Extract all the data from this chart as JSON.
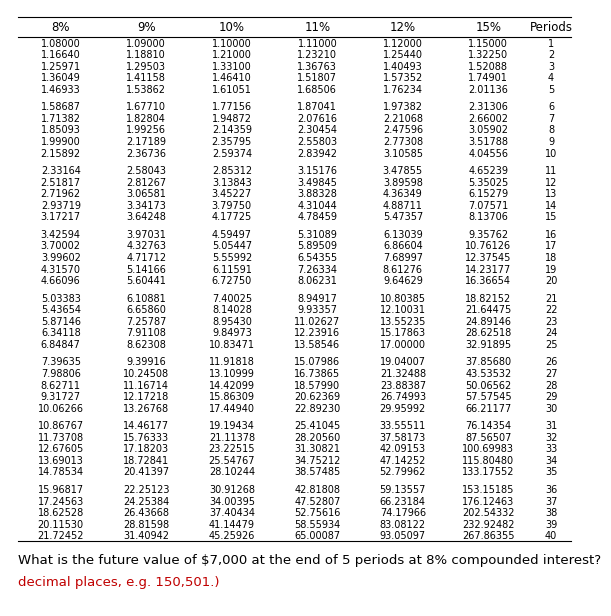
{
  "headers": [
    "8%",
    "9%",
    "10%",
    "11%",
    "12%",
    "15%",
    "Periods"
  ],
  "rows": [
    [
      1.08,
      1.09,
      1.1,
      1.11,
      1.12,
      1.15,
      1
    ],
    [
      1.1664,
      1.1881,
      1.21,
      1.2321,
      1.2544,
      1.3225,
      2
    ],
    [
      1.25971,
      1.29503,
      1.331,
      1.36763,
      1.40493,
      1.52088,
      3
    ],
    [
      1.36049,
      1.41158,
      1.4641,
      1.51807,
      1.57352,
      1.74901,
      4
    ],
    [
      1.46933,
      1.53862,
      1.61051,
      1.68506,
      1.76234,
      2.01136,
      5
    ],
    [
      null,
      null,
      null,
      null,
      null,
      null,
      null
    ],
    [
      1.58687,
      1.6771,
      1.77156,
      1.87041,
      1.97382,
      2.31306,
      6
    ],
    [
      1.71382,
      1.82804,
      1.94872,
      2.07616,
      2.21068,
      2.66002,
      7
    ],
    [
      1.85093,
      1.99256,
      2.14359,
      2.30454,
      2.47596,
      3.05902,
      8
    ],
    [
      1.999,
      2.17189,
      2.35795,
      2.55803,
      2.77308,
      3.51788,
      9
    ],
    [
      2.15892,
      2.36736,
      2.59374,
      2.83942,
      3.10585,
      4.04556,
      10
    ],
    [
      null,
      null,
      null,
      null,
      null,
      null,
      null
    ],
    [
      2.33164,
      2.58043,
      2.85312,
      3.15176,
      3.47855,
      4.65239,
      11
    ],
    [
      2.51817,
      2.81267,
      3.13843,
      3.49845,
      3.89598,
      5.35025,
      12
    ],
    [
      2.71962,
      3.06581,
      3.45227,
      3.88328,
      4.36349,
      6.15279,
      13
    ],
    [
      2.93719,
      3.34173,
      3.7975,
      4.31044,
      4.88711,
      7.07571,
      14
    ],
    [
      3.17217,
      3.64248,
      4.17725,
      4.78459,
      5.47357,
      8.13706,
      15
    ],
    [
      null,
      null,
      null,
      null,
      null,
      null,
      null
    ],
    [
      3.42594,
      3.97031,
      4.59497,
      5.31089,
      6.13039,
      9.35762,
      16
    ],
    [
      3.70002,
      4.32763,
      5.05447,
      5.89509,
      6.86604,
      10.76126,
      17
    ],
    [
      3.99602,
      4.71712,
      5.55992,
      6.54355,
      7.68997,
      12.37545,
      18
    ],
    [
      4.3157,
      5.14166,
      6.11591,
      7.26334,
      8.61276,
      14.23177,
      19
    ],
    [
      4.66096,
      5.60441,
      6.7275,
      8.06231,
      9.64629,
      16.36654,
      20
    ],
    [
      null,
      null,
      null,
      null,
      null,
      null,
      null
    ],
    [
      5.03383,
      6.10881,
      7.40025,
      8.94917,
      10.80385,
      18.82152,
      21
    ],
    [
      5.43654,
      6.6586,
      8.14028,
      9.93357,
      12.10031,
      21.64475,
      22
    ],
    [
      5.87146,
      7.25787,
      8.9543,
      11.02627,
      13.55235,
      24.89146,
      23
    ],
    [
      6.34118,
      7.91108,
      9.84973,
      12.23916,
      15.17863,
      28.62518,
      24
    ],
    [
      6.84847,
      8.62308,
      10.83471,
      13.58546,
      17.0,
      32.91895,
      25
    ],
    [
      null,
      null,
      null,
      null,
      null,
      null,
      null
    ],
    [
      7.39635,
      9.39916,
      11.91818,
      15.07986,
      19.04007,
      37.8568,
      26
    ],
    [
      7.98806,
      10.24508,
      13.10999,
      16.73865,
      21.32488,
      43.53532,
      27
    ],
    [
      8.62711,
      11.16714,
      14.42099,
      18.5799,
      23.88387,
      50.06562,
      28
    ],
    [
      9.31727,
      12.17218,
      15.86309,
      20.62369,
      26.74993,
      57.57545,
      29
    ],
    [
      10.06266,
      13.26768,
      17.4494,
      22.8923,
      29.95992,
      66.21177,
      30
    ],
    [
      null,
      null,
      null,
      null,
      null,
      null,
      null
    ],
    [
      10.86767,
      14.46177,
      19.19434,
      25.41045,
      33.55511,
      76.14354,
      31
    ],
    [
      11.73708,
      15.76333,
      21.11378,
      28.2056,
      37.58173,
      87.56507,
      32
    ],
    [
      12.67605,
      17.18203,
      23.22515,
      31.30821,
      42.09153,
      100.69983,
      33
    ],
    [
      13.69013,
      18.72841,
      25.54767,
      34.75212,
      47.14252,
      115.8048,
      34
    ],
    [
      14.78534,
      20.41397,
      28.10244,
      38.57485,
      52.79962,
      133.17552,
      35
    ],
    [
      null,
      null,
      null,
      null,
      null,
      null,
      null
    ],
    [
      15.96817,
      22.25123,
      30.91268,
      42.81808,
      59.13557,
      153.15185,
      36
    ],
    [
      17.24563,
      24.25384,
      34.00395,
      47.52807,
      66.23184,
      176.12463,
      37
    ],
    [
      18.62528,
      26.43668,
      37.40434,
      52.75616,
      74.17966,
      202.54332,
      38
    ],
    [
      20.1153,
      28.81598,
      41.14479,
      58.55934,
      83.08122,
      232.92482,
      39
    ],
    [
      21.72452,
      31.40942,
      45.25926,
      65.00087,
      93.05097,
      267.86355,
      40
    ]
  ],
  "question": "What is the future value of $7,000 at the end of 5 periods at 8% compounded interest?",
  "question_sub": "decimal places, e.g. 150,501.)",
  "bg_color": "#ffffff",
  "line_color": "#000000",
  "text_color": "#000000",
  "question_color": "#000000",
  "sub_color": "#c00000",
  "header_fontsize": 8.5,
  "data_fontsize": 7.0,
  "question_fontsize": 9.5
}
